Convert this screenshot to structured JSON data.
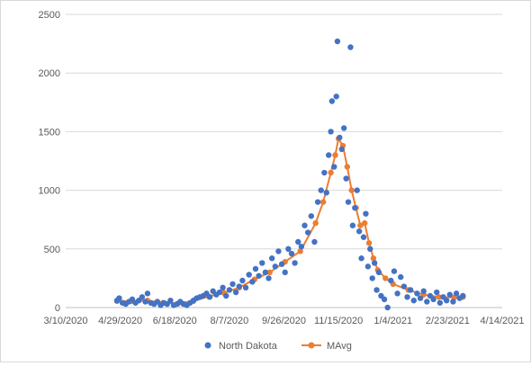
{
  "chart_data": {
    "type": "scatter",
    "title": "",
    "xlabel": "",
    "ylabel": "",
    "x_axis_type": "date",
    "xlim": [
      "2020-03-10",
      "2021-04-14"
    ],
    "x_tick_labels": [
      "3/10/2020",
      "4/29/2020",
      "6/18/2020",
      "8/7/2020",
      "9/26/2020",
      "11/15/2020",
      "1/4/2021",
      "2/23/2021",
      "4/14/2021"
    ],
    "ylim": [
      0,
      2500
    ],
    "y_tick_labels": [
      "0",
      "500",
      "1000",
      "1500",
      "2000",
      "2500"
    ],
    "grid": "horizontal",
    "legend_position": "bottom",
    "colors": {
      "scatter": "#4472C4",
      "line": "#ED7D31",
      "grid": "#d9d9d9",
      "axis_text": "#595959"
    },
    "series": [
      {
        "name": "North Dakota",
        "kind": "scatter",
        "points": [
          [
            "2020-04-26",
            60
          ],
          [
            "2020-04-28",
            80
          ],
          [
            "2020-05-01",
            40
          ],
          [
            "2020-05-04",
            30
          ],
          [
            "2020-05-07",
            50
          ],
          [
            "2020-05-10",
            70
          ],
          [
            "2020-05-13",
            40
          ],
          [
            "2020-05-16",
            60
          ],
          [
            "2020-05-19",
            90
          ],
          [
            "2020-05-22",
            50
          ],
          [
            "2020-05-24",
            120
          ],
          [
            "2020-05-27",
            40
          ],
          [
            "2020-05-30",
            30
          ],
          [
            "2020-06-02",
            50
          ],
          [
            "2020-06-05",
            20
          ],
          [
            "2020-06-08",
            40
          ],
          [
            "2020-06-11",
            30
          ],
          [
            "2020-06-14",
            60
          ],
          [
            "2020-06-17",
            20
          ],
          [
            "2020-06-20",
            30
          ],
          [
            "2020-06-23",
            50
          ],
          [
            "2020-06-26",
            30
          ],
          [
            "2020-06-29",
            20
          ],
          [
            "2020-07-02",
            40
          ],
          [
            "2020-07-05",
            60
          ],
          [
            "2020-07-08",
            80
          ],
          [
            "2020-07-11",
            90
          ],
          [
            "2020-07-14",
            100
          ],
          [
            "2020-07-17",
            120
          ],
          [
            "2020-07-20",
            90
          ],
          [
            "2020-07-23",
            140
          ],
          [
            "2020-07-26",
            110
          ],
          [
            "2020-07-29",
            130
          ],
          [
            "2020-08-01",
            170
          ],
          [
            "2020-08-04",
            100
          ],
          [
            "2020-08-07",
            150
          ],
          [
            "2020-08-10",
            200
          ],
          [
            "2020-08-13",
            130
          ],
          [
            "2020-08-16",
            180
          ],
          [
            "2020-08-19",
            230
          ],
          [
            "2020-08-22",
            170
          ],
          [
            "2020-08-25",
            280
          ],
          [
            "2020-08-28",
            220
          ],
          [
            "2020-08-31",
            330
          ],
          [
            "2020-09-03",
            270
          ],
          [
            "2020-09-06",
            380
          ],
          [
            "2020-09-09",
            300
          ],
          [
            "2020-09-12",
            250
          ],
          [
            "2020-09-15",
            420
          ],
          [
            "2020-09-18",
            350
          ],
          [
            "2020-09-21",
            480
          ],
          [
            "2020-09-24",
            370
          ],
          [
            "2020-09-27",
            300
          ],
          [
            "2020-09-30",
            500
          ],
          [
            "2020-10-03",
            460
          ],
          [
            "2020-10-06",
            380
          ],
          [
            "2020-10-09",
            560
          ],
          [
            "2020-10-12",
            520
          ],
          [
            "2020-10-15",
            700
          ],
          [
            "2020-10-18",
            640
          ],
          [
            "2020-10-21",
            780
          ],
          [
            "2020-10-24",
            560
          ],
          [
            "2020-10-27",
            900
          ],
          [
            "2020-10-30",
            1000
          ],
          [
            "2020-11-02",
            1150
          ],
          [
            "2020-11-04",
            980
          ],
          [
            "2020-11-06",
            1300
          ],
          [
            "2020-11-08",
            1500
          ],
          [
            "2020-11-09",
            1760
          ],
          [
            "2020-11-11",
            1200
          ],
          [
            "2020-11-13",
            1800
          ],
          [
            "2020-11-14",
            2270
          ],
          [
            "2020-11-16",
            1450
          ],
          [
            "2020-11-18",
            1350
          ],
          [
            "2020-11-20",
            1530
          ],
          [
            "2020-11-22",
            1100
          ],
          [
            "2020-11-24",
            900
          ],
          [
            "2020-11-26",
            2220
          ],
          [
            "2020-11-28",
            700
          ],
          [
            "2020-11-30",
            850
          ],
          [
            "2020-12-02",
            1000
          ],
          [
            "2020-12-04",
            650
          ],
          [
            "2020-12-06",
            420
          ],
          [
            "2020-12-08",
            600
          ],
          [
            "2020-12-10",
            800
          ],
          [
            "2020-12-12",
            350
          ],
          [
            "2020-12-14",
            500
          ],
          [
            "2020-12-16",
            250
          ],
          [
            "2020-12-18",
            380
          ],
          [
            "2020-12-20",
            150
          ],
          [
            "2020-12-22",
            300
          ],
          [
            "2020-12-24",
            100
          ],
          [
            "2020-12-27",
            70
          ],
          [
            "2020-12-30",
            0
          ],
          [
            "2021-01-02",
            230
          ],
          [
            "2021-01-05",
            310
          ],
          [
            "2021-01-08",
            120
          ],
          [
            "2021-01-11",
            260
          ],
          [
            "2021-01-14",
            180
          ],
          [
            "2021-01-17",
            90
          ],
          [
            "2021-01-20",
            150
          ],
          [
            "2021-01-23",
            60
          ],
          [
            "2021-01-26",
            120
          ],
          [
            "2021-01-29",
            80
          ],
          [
            "2021-02-01",
            140
          ],
          [
            "2021-02-04",
            50
          ],
          [
            "2021-02-07",
            100
          ],
          [
            "2021-02-10",
            70
          ],
          [
            "2021-02-13",
            130
          ],
          [
            "2021-02-16",
            40
          ],
          [
            "2021-02-19",
            90
          ],
          [
            "2021-02-22",
            60
          ],
          [
            "2021-02-25",
            110
          ],
          [
            "2021-02-28",
            50
          ],
          [
            "2021-03-03",
            120
          ],
          [
            "2021-03-06",
            80
          ],
          [
            "2021-03-09",
            100
          ]
        ]
      },
      {
        "name": "MAvg",
        "kind": "line",
        "points": [
          [
            "2020-04-26",
            55
          ],
          [
            "2020-05-10",
            55
          ],
          [
            "2020-05-24",
            60
          ],
          [
            "2020-06-07",
            40
          ],
          [
            "2020-06-21",
            35
          ],
          [
            "2020-07-05",
            55
          ],
          [
            "2020-07-19",
            95
          ],
          [
            "2020-08-02",
            125
          ],
          [
            "2020-08-16",
            170
          ],
          [
            "2020-08-30",
            240
          ],
          [
            "2020-09-13",
            300
          ],
          [
            "2020-09-27",
            390
          ],
          [
            "2020-10-11",
            480
          ],
          [
            "2020-10-25",
            720
          ],
          [
            "2020-11-01",
            900
          ],
          [
            "2020-11-08",
            1150
          ],
          [
            "2020-11-12",
            1300
          ],
          [
            "2020-11-15",
            1440
          ],
          [
            "2020-11-19",
            1380
          ],
          [
            "2020-11-23",
            1200
          ],
          [
            "2020-11-27",
            1000
          ],
          [
            "2020-12-01",
            850
          ],
          [
            "2020-12-05",
            700
          ],
          [
            "2020-12-09",
            720
          ],
          [
            "2020-12-13",
            550
          ],
          [
            "2020-12-17",
            420
          ],
          [
            "2020-12-21",
            320
          ],
          [
            "2020-12-28",
            250
          ],
          [
            "2021-01-04",
            200
          ],
          [
            "2021-01-18",
            150
          ],
          [
            "2021-02-01",
            110
          ],
          [
            "2021-02-15",
            90
          ],
          [
            "2021-03-01",
            85
          ],
          [
            "2021-03-09",
            90
          ]
        ]
      }
    ]
  }
}
